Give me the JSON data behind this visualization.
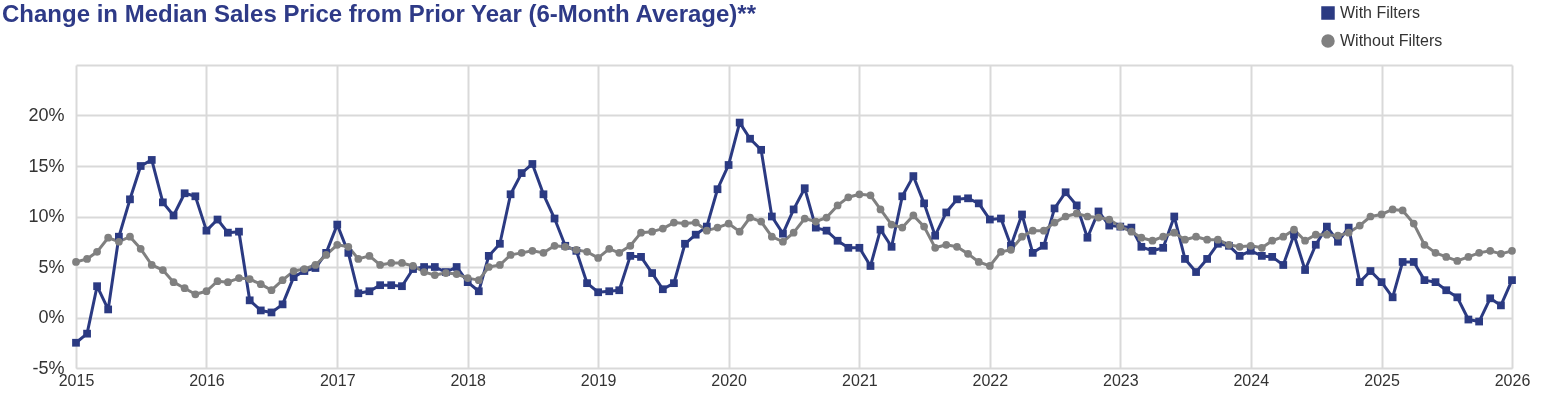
{
  "chart_data": {
    "type": "line",
    "title": "Change in Median Sales Price from Prior Year (6-Month Average)**",
    "x": [
      "2015-01",
      "2015-02",
      "2015-03",
      "2015-04",
      "2015-05",
      "2015-06",
      "2015-07",
      "2015-08",
      "2015-09",
      "2015-10",
      "2015-11",
      "2015-12",
      "2016-01",
      "2016-02",
      "2016-03",
      "2016-04",
      "2016-05",
      "2016-06",
      "2016-07",
      "2016-08",
      "2016-09",
      "2016-10",
      "2016-11",
      "2016-12",
      "2017-01",
      "2017-02",
      "2017-03",
      "2017-04",
      "2017-05",
      "2017-06",
      "2017-07",
      "2017-08",
      "2017-09",
      "2017-10",
      "2017-11",
      "2017-12",
      "2018-01",
      "2018-02",
      "2018-03",
      "2018-04",
      "2018-05",
      "2018-06",
      "2018-07",
      "2018-08",
      "2018-09",
      "2018-10",
      "2018-11",
      "2018-12",
      "2019-01",
      "2019-02",
      "2019-03",
      "2019-04",
      "2019-05",
      "2019-06",
      "2019-07",
      "2019-08",
      "2019-09",
      "2019-10",
      "2019-11",
      "2019-12",
      "2020-01",
      "2020-02",
      "2020-03",
      "2020-04",
      "2020-05",
      "2020-06",
      "2020-07",
      "2020-08",
      "2020-09",
      "2020-10",
      "2020-11",
      "2020-12",
      "2021-01",
      "2021-02",
      "2021-03",
      "2021-04",
      "2021-05",
      "2021-06",
      "2021-07",
      "2021-08",
      "2021-09",
      "2021-10",
      "2021-11",
      "2021-12",
      "2022-01",
      "2022-02",
      "2022-03",
      "2022-04",
      "2022-05",
      "2022-06",
      "2022-07",
      "2022-08",
      "2022-09",
      "2022-10",
      "2022-11",
      "2022-12",
      "2023-01",
      "2023-02",
      "2023-03",
      "2023-04",
      "2023-05",
      "2023-06",
      "2023-07",
      "2023-08",
      "2023-09",
      "2023-10",
      "2023-11",
      "2023-12",
      "2024-01",
      "2024-02",
      "2024-03",
      "2024-04",
      "2024-05",
      "2024-06",
      "2024-07",
      "2024-08",
      "2024-09",
      "2024-10",
      "2024-11",
      "2024-12",
      "2025-01",
      "2025-02",
      "2025-03",
      "2025-04",
      "2025-05",
      "2025-06",
      "2025-07",
      "2025-08",
      "2025-09",
      "2025-10",
      "2025-11",
      "2025-12",
      "2026-01"
    ],
    "series": [
      {
        "name": "With Filters",
        "color": "#2b3a82",
        "marker": "square",
        "values": [
          -2.5,
          -1.6,
          3.1,
          0.8,
          8.0,
          11.7,
          15.0,
          15.6,
          11.4,
          10.1,
          12.3,
          12.0,
          8.6,
          9.7,
          8.4,
          8.5,
          1.7,
          0.7,
          0.5,
          1.3,
          4.0,
          4.6,
          4.9,
          6.4,
          9.2,
          6.4,
          2.4,
          2.6,
          3.2,
          3.2,
          3.1,
          4.8,
          5.0,
          5.0,
          4.5,
          5.0,
          3.5,
          2.6,
          6.1,
          7.3,
          12.2,
          14.3,
          15.2,
          12.2,
          9.8,
          7.1,
          6.6,
          3.4,
          2.5,
          2.6,
          2.7,
          6.1,
          6.0,
          4.4,
          2.8,
          3.4,
          7.3,
          8.2,
          9.0,
          12.7,
          15.1,
          19.3,
          17.7,
          16.6,
          10.0,
          8.3,
          10.7,
          12.8,
          8.9,
          8.6,
          7.6,
          6.9,
          6.9,
          5.1,
          8.7,
          7.0,
          12.0,
          14.0,
          11.3,
          8.1,
          10.4,
          11.7,
          11.8,
          11.3,
          9.7,
          9.8,
          7.1,
          10.2,
          6.4,
          7.1,
          10.8,
          12.4,
          11.1,
          7.9,
          10.5,
          9.1,
          9.0,
          8.9,
          7.0,
          6.6,
          6.9,
          10.0,
          5.8,
          4.5,
          5.8,
          7.3,
          7.1,
          6.1,
          6.6,
          6.1,
          6.0,
          5.2,
          8.2,
          4.7,
          7.2,
          9.0,
          7.5,
          8.9,
          3.5,
          4.6,
          3.5,
          2.0,
          5.5,
          5.5,
          3.7,
          3.5,
          2.7,
          2.0,
          -0.2,
          -0.4,
          1.9,
          1.2,
          3.7
        ]
      },
      {
        "name": "Without Filters",
        "color": "#808080",
        "marker": "circle",
        "values": [
          5.5,
          5.8,
          6.5,
          7.9,
          7.5,
          8.0,
          6.8,
          5.2,
          4.7,
          3.5,
          2.9,
          2.3,
          2.6,
          3.6,
          3.5,
          3.9,
          3.8,
          3.3,
          2.7,
          3.7,
          4.6,
          4.8,
          5.2,
          6.2,
          7.2,
          7.0,
          5.8,
          6.1,
          5.2,
          5.4,
          5.4,
          5.1,
          4.5,
          4.2,
          4.4,
          4.3,
          3.9,
          3.7,
          5.0,
          5.2,
          6.2,
          6.4,
          6.6,
          6.4,
          7.1,
          7.0,
          6.7,
          6.5,
          5.9,
          6.8,
          6.4,
          7.1,
          8.4,
          8.5,
          8.8,
          9.4,
          9.3,
          9.4,
          8.6,
          8.9,
          9.3,
          8.5,
          9.9,
          9.5,
          8.0,
          7.5,
          8.4,
          9.8,
          9.5,
          9.9,
          11.1,
          11.9,
          12.2,
          12.1,
          10.7,
          9.2,
          8.9,
          10.1,
          9.0,
          6.9,
          7.2,
          7.0,
          6.3,
          5.5,
          5.1,
          6.5,
          6.7,
          8.0,
          8.6,
          8.6,
          9.4,
          10.0,
          10.3,
          10.0,
          9.9,
          9.7,
          9.0,
          8.5,
          7.9,
          7.6,
          8.0,
          8.4,
          7.7,
          8.0,
          7.7,
          7.7,
          7.2,
          7.0,
          7.1,
          6.9,
          7.6,
          8.0,
          8.7,
          7.6,
          8.2,
          8.2,
          8.1,
          8.4,
          9.1,
          10.0,
          10.2,
          10.7,
          10.6,
          9.3,
          7.2,
          6.4,
          6.0,
          5.6,
          6.0,
          6.4,
          6.6,
          6.3,
          6.6
        ]
      }
    ],
    "xlim": [
      "2015",
      "2026"
    ],
    "xticks": [
      "2015",
      "2016",
      "2017",
      "2018",
      "2019",
      "2020",
      "2021",
      "2022",
      "2023",
      "2024",
      "2025",
      "2026"
    ],
    "ylim": [
      -5,
      25
    ],
    "yticks": [
      {
        "value": -5,
        "label": "-5%"
      },
      {
        "value": 0,
        "label": "0%"
      },
      {
        "value": 5,
        "label": "5%"
      },
      {
        "value": 10,
        "label": "10%"
      },
      {
        "value": 15,
        "label": "15%"
      },
      {
        "value": 20,
        "label": "20%"
      },
      {
        "value": 25,
        "label": null
      }
    ],
    "grid": true,
    "legend": "top right",
    "line_style": "solid"
  }
}
